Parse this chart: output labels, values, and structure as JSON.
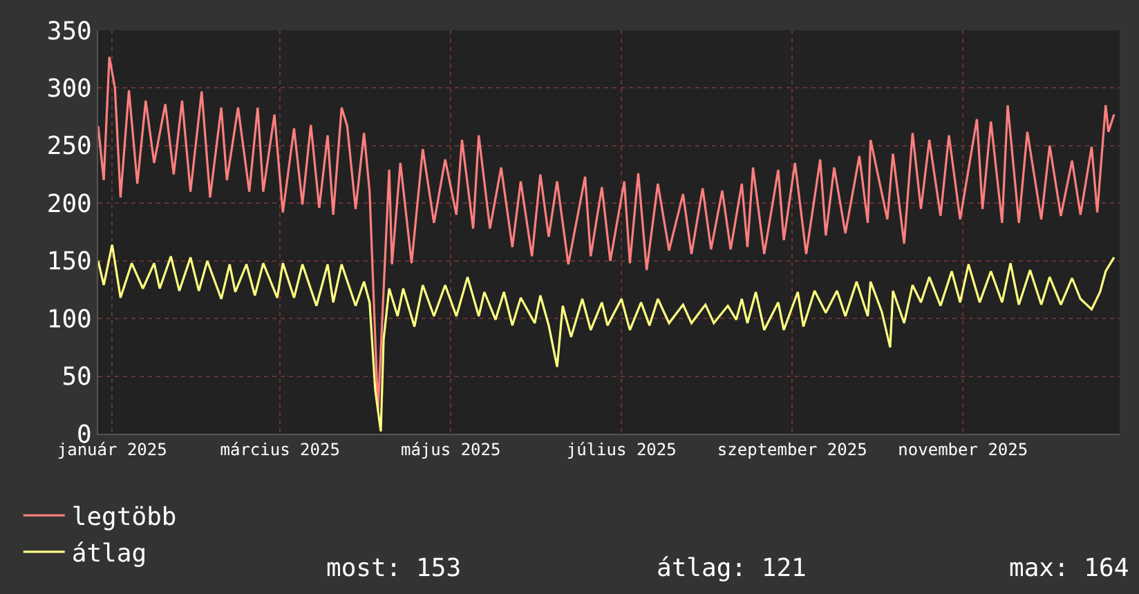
{
  "chart_data": {
    "type": "line",
    "xlim": [
      "2025-01-10",
      "2026-01-10"
    ],
    "xticks": [
      {
        "value": "2025-01-15",
        "label": "január 2025"
      },
      {
        "value": "2025-03-16",
        "label": "március 2025"
      },
      {
        "value": "2025-05-16",
        "label": "május 2025"
      },
      {
        "value": "2025-07-16",
        "label": "július 2025"
      },
      {
        "value": "2025-09-15",
        "label": "szeptember 2025"
      },
      {
        "value": "2025-11-15",
        "label": "november 2025"
      }
    ],
    "ylim": [
      0,
      350
    ],
    "yticks": [
      0,
      50,
      100,
      150,
      200,
      250,
      300,
      350
    ],
    "grid": true,
    "legend": "bottom left",
    "line_style": "solid",
    "annotations": [
      "most: 153",
      "átlag: 121",
      "max: 164"
    ],
    "series": [
      {
        "name": "legtöbb",
        "color": "#ff7f7f",
        "x": [
          "2025-01-10",
          "2025-01-12",
          "2025-01-14",
          "2025-01-16",
          "2025-01-18",
          "2025-01-21",
          "2025-01-24",
          "2025-01-27",
          "2025-01-30",
          "2025-02-03",
          "2025-02-06",
          "2025-02-09",
          "2025-02-12",
          "2025-02-16",
          "2025-02-19",
          "2025-02-23",
          "2025-02-25",
          "2025-03-01",
          "2025-03-05",
          "2025-03-08",
          "2025-03-10",
          "2025-03-14",
          "2025-03-17",
          "2025-03-21",
          "2025-03-24",
          "2025-03-27",
          "2025-03-30",
          "2025-04-02",
          "2025-04-04",
          "2025-04-07",
          "2025-04-09",
          "2025-04-12",
          "2025-04-15",
          "2025-04-17",
          "2025-04-20",
          "2025-04-24",
          "2025-04-25",
          "2025-04-28",
          "2025-05-02",
          "2025-05-06",
          "2025-05-10",
          "2025-05-14",
          "2025-05-18",
          "2025-05-20",
          "2025-05-24",
          "2025-05-26",
          "2025-05-30",
          "2025-06-03",
          "2025-06-07",
          "2025-06-10",
          "2025-06-14",
          "2025-06-17",
          "2025-06-20",
          "2025-06-23",
          "2025-06-27",
          "2025-07-03",
          "2025-07-05",
          "2025-07-09",
          "2025-07-12",
          "2025-07-17",
          "2025-07-19",
          "2025-07-22",
          "2025-07-25",
          "2025-07-29",
          "2025-08-02",
          "2025-08-07",
          "2025-08-10",
          "2025-08-14",
          "2025-08-17",
          "2025-08-21",
          "2025-08-24",
          "2025-08-28",
          "2025-08-30",
          "2025-09-01",
          "2025-09-05",
          "2025-09-10",
          "2025-09-12",
          "2025-09-16",
          "2025-09-20",
          "2025-09-25",
          "2025-09-27",
          "2025-09-30",
          "2025-10-04",
          "2025-10-09",
          "2025-10-12",
          "2025-10-13",
          "2025-10-19",
          "2025-10-21",
          "2025-10-25",
          "2025-10-28",
          "2025-10-31",
          "2025-11-03",
          "2025-11-07",
          "2025-11-10",
          "2025-11-14",
          "2025-11-20",
          "2025-11-22",
          "2025-11-25",
          "2025-11-29",
          "2025-12-01",
          "2025-12-05",
          "2025-12-08",
          "2025-12-13",
          "2025-12-16",
          "2025-12-20",
          "2025-12-24",
          "2025-12-27",
          "2025-12-31",
          "2026-01-02",
          "2026-01-05",
          "2026-01-06",
          "2026-01-08"
        ],
        "values": [
          267,
          220,
          327,
          300,
          205,
          298,
          217,
          289,
          235,
          286,
          225,
          289,
          210,
          297,
          205,
          283,
          220,
          283,
          210,
          283,
          210,
          277,
          192,
          265,
          199,
          268,
          196,
          259,
          190,
          283,
          267,
          195,
          261,
          210,
          20,
          229,
          147,
          235,
          148,
          247,
          183,
          238,
          190,
          255,
          178,
          259,
          178,
          231,
          162,
          219,
          154,
          225,
          171,
          219,
          147,
          223,
          154,
          214,
          150,
          219,
          148,
          226,
          142,
          217,
          159,
          208,
          156,
          213,
          160,
          211,
          160,
          217,
          162,
          231,
          156,
          229,
          168,
          235,
          156,
          238,
          172,
          231,
          174,
          241,
          183,
          255,
          186,
          243,
          165,
          261,
          195,
          255,
          189,
          259,
          186,
          273,
          195,
          271,
          183,
          285,
          183,
          262,
          186,
          250,
          189,
          237,
          190,
          249,
          192,
          285,
          262,
          277
        ]
      },
      {
        "name": "átlag",
        "color": "#ffff80",
        "x": [
          "2025-01-10",
          "2025-01-12",
          "2025-01-15",
          "2025-01-18",
          "2025-01-22",
          "2025-01-26",
          "2025-01-30",
          "2025-02-01",
          "2025-02-05",
          "2025-02-08",
          "2025-02-12",
          "2025-02-15",
          "2025-02-18",
          "2025-02-23",
          "2025-02-26",
          "2025-02-28",
          "2025-03-04",
          "2025-03-07",
          "2025-03-10",
          "2025-03-15",
          "2025-03-17",
          "2025-03-21",
          "2025-03-24",
          "2025-03-29",
          "2025-04-02",
          "2025-04-04",
          "2025-04-07",
          "2025-04-12",
          "2025-04-15",
          "2025-04-17",
          "2025-04-19",
          "2025-04-21",
          "2025-04-22",
          "2025-04-24",
          "2025-04-27",
          "2025-04-29",
          "2025-05-03",
          "2025-05-06",
          "2025-05-10",
          "2025-05-14",
          "2025-05-18",
          "2025-05-22",
          "2025-05-26",
          "2025-05-28",
          "2025-06-01",
          "2025-06-04",
          "2025-06-07",
          "2025-06-10",
          "2025-06-15",
          "2025-06-17",
          "2025-06-20",
          "2025-06-23",
          "2025-06-25",
          "2025-06-28",
          "2025-07-02",
          "2025-07-05",
          "2025-07-09",
          "2025-07-11",
          "2025-07-16",
          "2025-07-19",
          "2025-07-23",
          "2025-07-26",
          "2025-07-29",
          "2025-08-02",
          "2025-08-07",
          "2025-08-10",
          "2025-08-15",
          "2025-08-18",
          "2025-08-23",
          "2025-08-26",
          "2025-08-28",
          "2025-08-30",
          "2025-09-02",
          "2025-09-05",
          "2025-09-10",
          "2025-09-12",
          "2025-09-17",
          "2025-09-19",
          "2025-09-23",
          "2025-09-27",
          "2025-10-01",
          "2025-10-04",
          "2025-10-08",
          "2025-10-12",
          "2025-10-13",
          "2025-10-17",
          "2025-10-20",
          "2025-10-21",
          "2025-10-25",
          "2025-10-28",
          "2025-10-31",
          "2025-11-03",
          "2025-11-07",
          "2025-11-11",
          "2025-11-14",
          "2025-11-17",
          "2025-11-21",
          "2025-11-25",
          "2025-11-29",
          "2025-12-02",
          "2025-12-05",
          "2025-12-09",
          "2025-12-13",
          "2025-12-16",
          "2025-12-20",
          "2025-12-24",
          "2025-12-27",
          "2025-12-31",
          "2026-01-03",
          "2026-01-05",
          "2026-01-08"
        ],
        "values": [
          150,
          129,
          164,
          118,
          148,
          126,
          148,
          126,
          154,
          124,
          153,
          124,
          150,
          117,
          147,
          123,
          147,
          120,
          148,
          118,
          148,
          118,
          147,
          111,
          147,
          114,
          147,
          111,
          132,
          114,
          38,
          2,
          82,
          126,
          102,
          126,
          93,
          129,
          102,
          129,
          102,
          136,
          102,
          123,
          99,
          123,
          94,
          118,
          96,
          120,
          94,
          58,
          111,
          84,
          117,
          90,
          114,
          94,
          117,
          90,
          114,
          94,
          117,
          96,
          112,
          96,
          112,
          96,
          111,
          99,
          117,
          96,
          123,
          90,
          114,
          90,
          123,
          93,
          124,
          105,
          124,
          102,
          132,
          102,
          132,
          106,
          75,
          124,
          96,
          129,
          114,
          136,
          111,
          141,
          114,
          147,
          114,
          141,
          114,
          148,
          112,
          142,
          112,
          136,
          112,
          135,
          117,
          108,
          123,
          141,
          153
        ]
      }
    ]
  }
}
